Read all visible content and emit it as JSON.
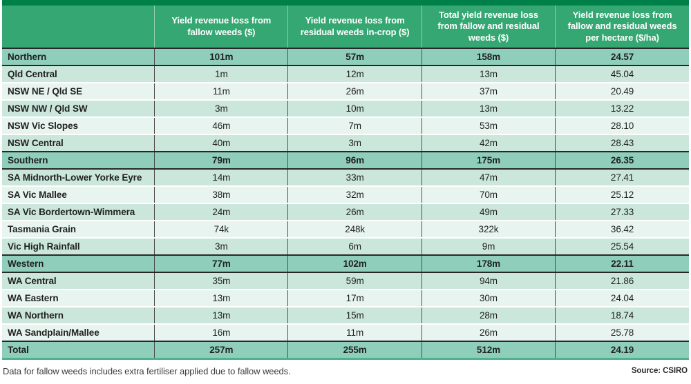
{
  "colors": {
    "top_bar": "#008049",
    "header_bg": "#35a772",
    "summary_row_bg": "#8fcebb",
    "alt_row_dark": "#cbe7dc",
    "alt_row_light": "#e8f4ef",
    "divider_dark": "#4c4c4c",
    "summary_border": "#272727",
    "bottom_border": "#4fb28f"
  },
  "footer": {
    "note": "Data for fallow weeds includes extra fertiliser applied due to fallow weeds.",
    "source": "Source: CSIRO"
  },
  "chart_data": {
    "type": "table",
    "title": "",
    "columns": [
      "",
      "Yield revenue loss from fallow weeds ($)",
      "Yield revenue loss from residual weeds in-crop ($)",
      "Total yield revenue loss from fallow and residual weeds ($)",
      "Yield revenue loss from fallow and residual weeds per hectare ($/ha)"
    ],
    "rows": [
      {
        "region": "Northern",
        "values": [
          "101m",
          "57m",
          "158m",
          "24.57"
        ],
        "row_style": "summary"
      },
      {
        "region": "Qld Central",
        "values": [
          "1m",
          "12m",
          "13m",
          "45.04"
        ],
        "row_style": "alt-a"
      },
      {
        "region": "NSW NE / Qld SE",
        "values": [
          "11m",
          "26m",
          "37m",
          "20.49"
        ],
        "row_style": "alt-b"
      },
      {
        "region": "NSW NW / Qld SW",
        "values": [
          "3m",
          "10m",
          "13m",
          "13.22"
        ],
        "row_style": "alt-a"
      },
      {
        "region": "NSW Vic Slopes",
        "values": [
          "46m",
          "7m",
          "53m",
          "28.10"
        ],
        "row_style": "alt-b"
      },
      {
        "region": "NSW Central",
        "values": [
          "40m",
          "3m",
          "42m",
          "28.43"
        ],
        "row_style": "alt-a"
      },
      {
        "region": "Southern",
        "values": [
          "79m",
          "96m",
          "175m",
          "26.35"
        ],
        "row_style": "summary"
      },
      {
        "region": "SA Midnorth-Lower Yorke Eyre",
        "values": [
          "14m",
          "33m",
          "47m",
          "27.41"
        ],
        "row_style": "alt-a"
      },
      {
        "region": "SA Vic Mallee",
        "values": [
          "38m",
          "32m",
          "70m",
          "25.12"
        ],
        "row_style": "alt-b"
      },
      {
        "region": "SA Vic Bordertown-Wimmera",
        "values": [
          "24m",
          "26m",
          "49m",
          "27.33"
        ],
        "row_style": "alt-a"
      },
      {
        "region": "Tasmania Grain",
        "values": [
          "74k",
          "248k",
          "322k",
          "36.42"
        ],
        "row_style": "alt-b"
      },
      {
        "region": "Vic High Rainfall",
        "values": [
          "3m",
          "6m",
          "9m",
          "25.54"
        ],
        "row_style": "alt-a"
      },
      {
        "region": "Western",
        "values": [
          "77m",
          "102m",
          "178m",
          "22.11"
        ],
        "row_style": "summary"
      },
      {
        "region": "WA Central",
        "values": [
          "35m",
          "59m",
          "94m",
          "21.86"
        ],
        "row_style": "alt-a"
      },
      {
        "region": "WA Eastern",
        "values": [
          "13m",
          "17m",
          "30m",
          "24.04"
        ],
        "row_style": "alt-b"
      },
      {
        "region": "WA Northern",
        "values": [
          "13m",
          "15m",
          "28m",
          "18.74"
        ],
        "row_style": "alt-a"
      },
      {
        "region": "WA Sandplain/Mallee",
        "values": [
          "16m",
          "11m",
          "26m",
          "25.78"
        ],
        "row_style": "alt-b"
      },
      {
        "region": "Total",
        "values": [
          "257m",
          "255m",
          "512m",
          "24.19"
        ],
        "row_style": "total"
      }
    ]
  }
}
